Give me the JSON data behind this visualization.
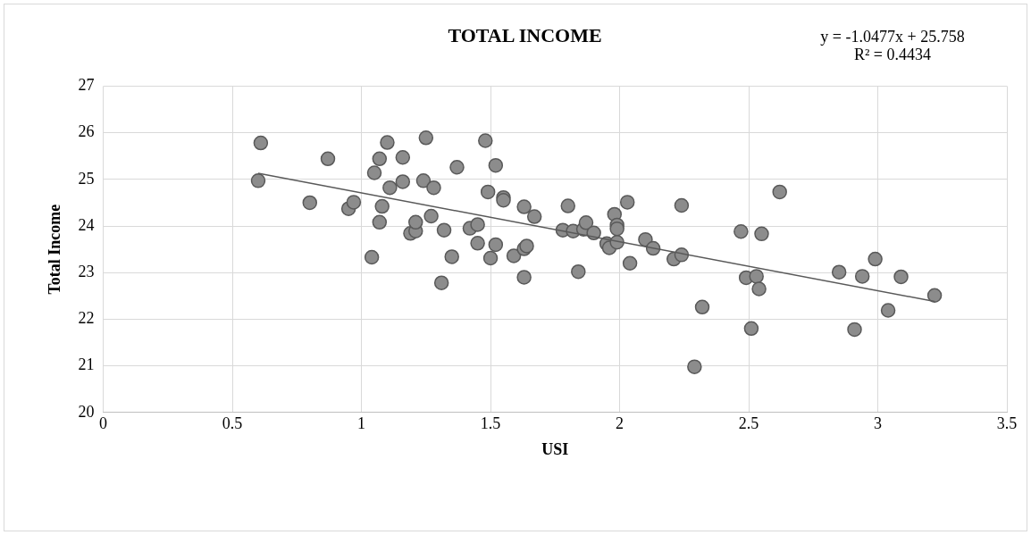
{
  "chart_data": {
    "type": "scatter",
    "title": "TOTAL INCOME",
    "xlabel": "USI",
    "ylabel": "Total Income",
    "xlim": [
      0,
      3.5
    ],
    "xticks": [
      0,
      0.5,
      1,
      1.5,
      2,
      2.5,
      3,
      3.5
    ],
    "ylim": [
      20,
      27
    ],
    "yticks": [
      20,
      21,
      22,
      23,
      24,
      25,
      26,
      27
    ],
    "grid": true,
    "legend": false,
    "marker": "circle",
    "annotations": [
      "y = -1.0477x + 25.758",
      "R² = 0.4434"
    ],
    "series": [
      {
        "type": "scatter",
        "color": "#8c8c8c",
        "x": [
          0.61,
          0.6,
          0.8,
          0.87,
          0.95,
          0.97,
          1.04,
          1.05,
          1.07,
          1.07,
          1.08,
          1.1,
          1.11,
          1.16,
          1.16,
          1.19,
          1.21,
          1.21,
          1.24,
          1.25,
          1.27,
          1.28,
          1.31,
          1.32,
          1.35,
          1.37,
          1.42,
          1.45,
          1.45,
          1.48,
          1.49,
          1.5,
          1.52,
          1.52,
          1.55,
          1.55,
          1.59,
          1.63,
          1.63,
          1.63,
          1.64,
          1.67,
          1.78,
          1.8,
          1.82,
          1.84,
          1.86,
          1.87,
          1.9,
          1.95,
          1.96,
          1.98,
          1.99,
          1.99,
          1.99,
          2.03,
          2.04,
          2.1,
          2.13,
          2.21,
          2.24,
          2.24,
          2.29,
          2.32,
          2.47,
          2.49,
          2.51,
          2.53,
          2.54,
          2.55,
          2.62,
          2.85,
          2.91,
          2.94,
          2.99,
          3.04,
          3.09,
          3.22
        ],
        "values": [
          25.78,
          24.97,
          24.5,
          25.44,
          24.37,
          24.51,
          23.33,
          25.14,
          24.08,
          25.44,
          24.42,
          25.79,
          24.82,
          24.95,
          25.47,
          23.84,
          23.89,
          24.08,
          24.97,
          25.89,
          24.21,
          24.82,
          22.78,
          23.91,
          23.34,
          25.26,
          23.95,
          24.03,
          23.63,
          25.83,
          24.73,
          23.31,
          23.6,
          25.3,
          24.61,
          24.55,
          23.36,
          24.41,
          23.51,
          22.9,
          23.57,
          24.2,
          23.91,
          24.43,
          23.89,
          23.02,
          23.93,
          24.07,
          23.85,
          23.62,
          23.53,
          24.25,
          24.02,
          23.94,
          23.65,
          24.51,
          23.2,
          23.71,
          23.52,
          23.29,
          23.38,
          24.44,
          20.98,
          22.26,
          23.88,
          22.89,
          21.8,
          22.92,
          22.65,
          23.83,
          24.73,
          23.01,
          21.78,
          22.92,
          23.29,
          22.19,
          22.91,
          22.51
        ]
      },
      {
        "type": "line",
        "color": "#595959",
        "marker": "none",
        "x": [
          0.6,
          3.22
        ],
        "values": [
          25.13,
          22.38
        ]
      }
    ]
  }
}
